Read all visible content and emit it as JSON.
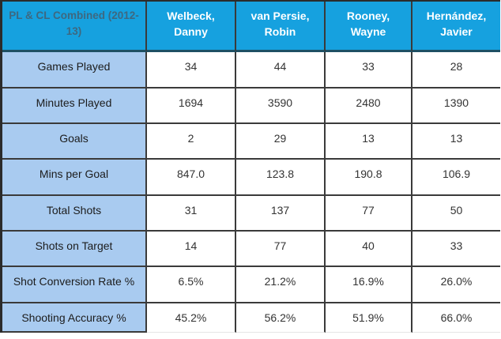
{
  "chart_data": {
    "type": "table",
    "title": "PL & CL Combined (2012-13)",
    "columns": [
      "Welbeck, Danny",
      "van Persie, Robin",
      "Rooney, Wayne",
      "Hernández, Javier"
    ],
    "rows": [
      {
        "label": "Games Played",
        "values": [
          "34",
          "44",
          "33",
          "28"
        ]
      },
      {
        "label": "Minutes Played",
        "values": [
          "1694",
          "3590",
          "2480",
          "1390"
        ]
      },
      {
        "label": "Goals",
        "values": [
          "2",
          "29",
          "13",
          "13"
        ]
      },
      {
        "label": "Mins per Goal",
        "values": [
          "847.0",
          "123.8",
          "190.8",
          "106.9"
        ]
      },
      {
        "label": "Total Shots",
        "values": [
          "31",
          "137",
          "77",
          "50"
        ]
      },
      {
        "label": "Shots on Target",
        "values": [
          "14",
          "77",
          "40",
          "33"
        ]
      },
      {
        "label": "Shot Conversion Rate %",
        "values": [
          "6.5%",
          "21.2%",
          "16.9%",
          "26.0%"
        ]
      },
      {
        "label": "Shooting Accuracy %",
        "values": [
          "45.2%",
          "56.2%",
          "51.9%",
          "66.0%"
        ]
      }
    ],
    "layout": {
      "header_position": "top-row-and-left-column",
      "grid": "on"
    }
  },
  "display": {
    "corner": [
      "PL & CL Combined (2012-",
      "13)"
    ],
    "players": [
      [
        "Welbeck,",
        "Danny"
      ],
      [
        "van Persie,",
        "Robin"
      ],
      [
        "Rooney,",
        "Wayne"
      ],
      [
        "Hernández,",
        "Javier"
      ]
    ]
  },
  "colors": {
    "header_bg": "#16a1df",
    "header_text": "#ffffff",
    "corner_text": "#3e6880",
    "label_bg": "#a9cbf0",
    "value_text": "#333333",
    "grid_border": "#3a3a3a",
    "header_bottom_border": "#1e5064"
  }
}
